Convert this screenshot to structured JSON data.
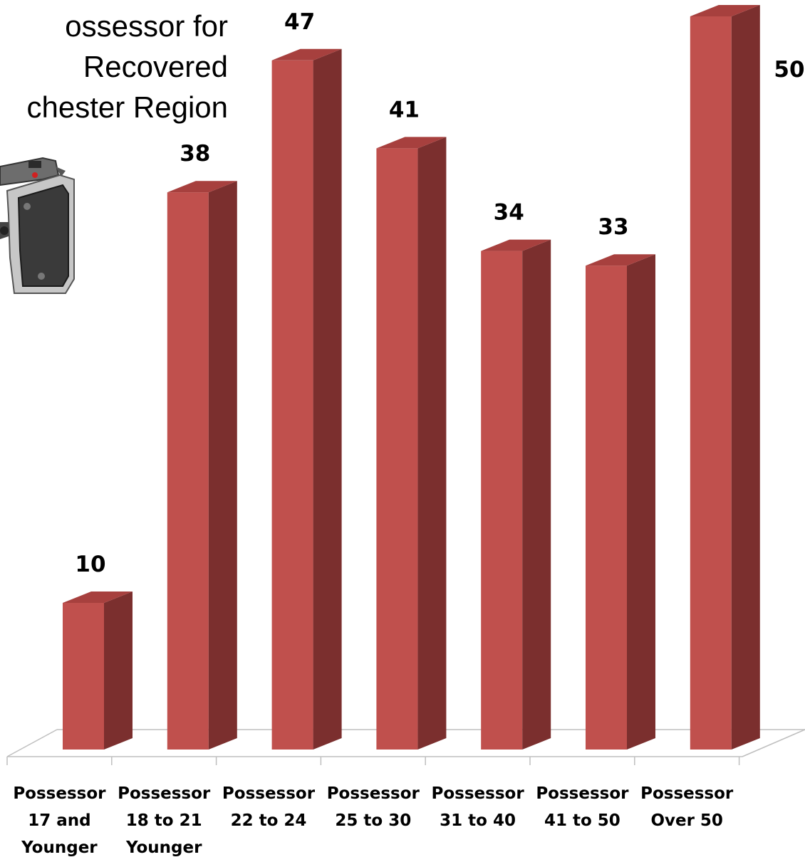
{
  "title_lines": [
    "ossessor for",
    "Recovered",
    "chester Region"
  ],
  "icons": {
    "decoration": "pistol-icon"
  },
  "colors": {
    "bar_front": "#C0504D",
    "bar_side": "#7B2F2E",
    "bar_top": "#A7403E",
    "floor_line": "#BFBFBF"
  },
  "chart_data": {
    "type": "bar",
    "categories": [
      [
        "Possessor",
        "17 and",
        "Younger"
      ],
      [
        "Possessor",
        "18 to 21",
        "Younger"
      ],
      [
        "Possessor",
        "22 to 24"
      ],
      [
        "Possessor",
        "25 to 30"
      ],
      [
        "Possessor",
        "31 to 40"
      ],
      [
        "Possessor",
        "41 to 50"
      ],
      [
        "Possessor",
        "Over 50"
      ]
    ],
    "values": [
      10,
      38,
      47,
      41,
      34,
      33,
      50
    ],
    "data_labels": [
      "10",
      "38",
      "47",
      "41",
      "34",
      "33",
      "50"
    ],
    "ylim": [
      0,
      52
    ],
    "grid": false,
    "style": "3d-column"
  }
}
